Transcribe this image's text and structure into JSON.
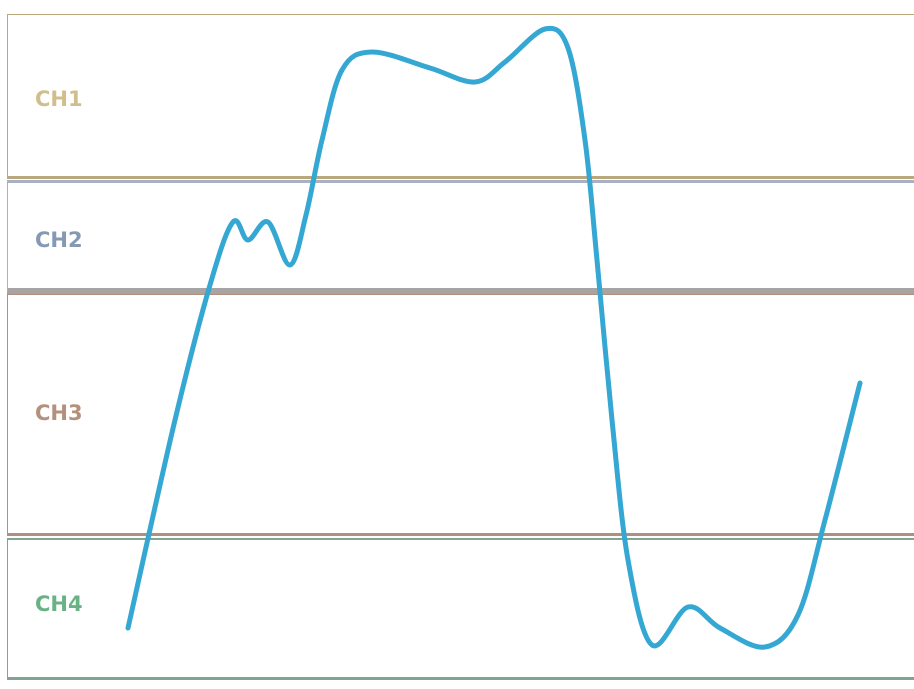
{
  "channels": [
    {
      "label": "CH1",
      "color": "#c8b47a",
      "border": "#b9a87e"
    },
    {
      "label": "CH2",
      "color": "#6f88a6",
      "border": "#9aa5b8"
    },
    {
      "label": "CH3",
      "color": "#a87e67",
      "border": "#b08f7e"
    },
    {
      "label": "CH4",
      "color": "#4ea56f",
      "border": "#7fa592"
    }
  ],
  "waveform": {
    "color": "#35a7d3"
  }
}
